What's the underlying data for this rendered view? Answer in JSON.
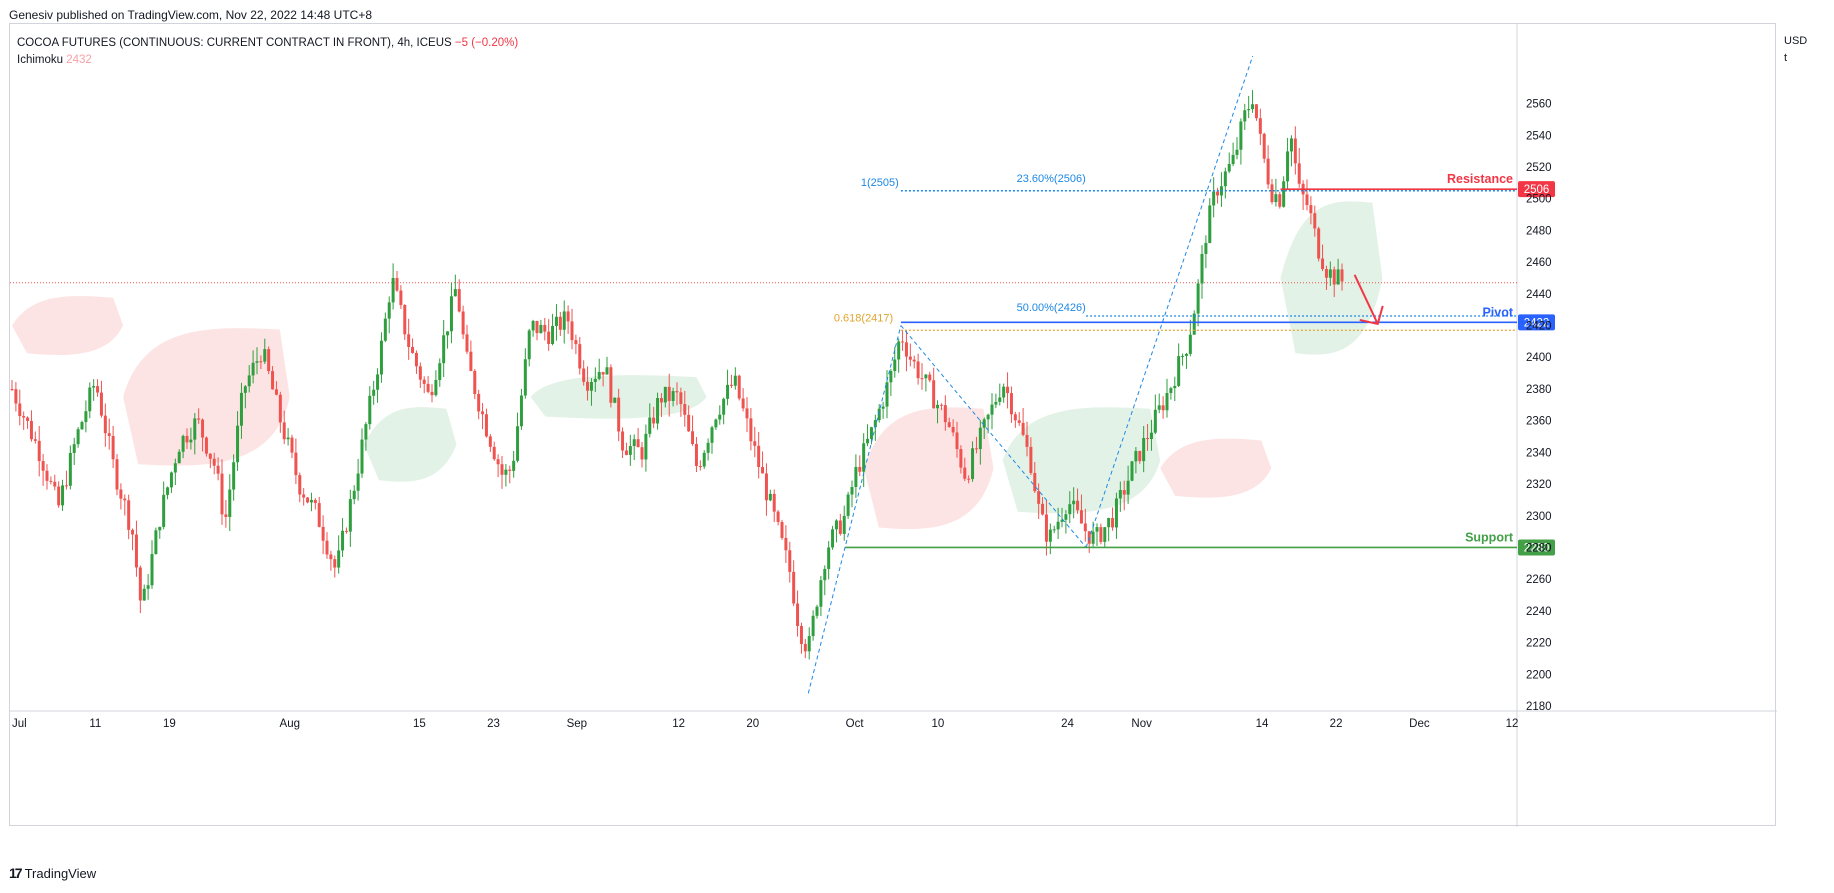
{
  "header": {
    "published": "Genesiv published on TradingView.com, Nov 22, 2022 14:48 UTC+8"
  },
  "legend": {
    "symbol": "COCOA FUTURES (CONTINUOUS: CURRENT CONTRACT IN FRONT), 4h, ICEUS",
    "change": "−5 (−0.20%)",
    "indicator": "Ichimoku",
    "indicator_value": "2432"
  },
  "currency": [
    "USD",
    "t"
  ],
  "footer": {
    "logo": "17",
    "brand": "TradingView"
  },
  "colors": {
    "up": "#2e9e3e",
    "down": "#ef5350",
    "resistance": "#f23645",
    "pivot": "#2962ff",
    "support": "#43a047",
    "fib": "#1e88e5",
    "fib618": "#e0a52e",
    "cloud_bull": "#e3f2e6",
    "cloud_bear": "#fde4e4"
  },
  "annotations": {
    "resistance": {
      "label": "Resistance",
      "value": 2506,
      "tag": "2506"
    },
    "pivot": {
      "label": "Pivot",
      "value": 2422,
      "tag": "2422"
    },
    "support": {
      "label": "Support",
      "value": 2280,
      "tag": "2280"
    },
    "fib_top": {
      "label": "1(2505)",
      "value": 2505
    },
    "fib_236": {
      "label": "23.60%(2506)",
      "value": 2506
    },
    "fib_50": {
      "label": "50.00%(2426)",
      "value": 2426
    },
    "fib_618": {
      "label": "0.618(2417)",
      "value": 2417
    },
    "last_price": 2447
  },
  "chart_data": {
    "type": "candlestick",
    "title": "COCOA FUTURES (CONTINUOUS: CURRENT CONTRACT IN FRONT), 4h, ICEUS",
    "ylim": [
      2180,
      2590
    ],
    "yticks": [
      2180,
      2200,
      2220,
      2240,
      2260,
      2280,
      2300,
      2320,
      2340,
      2360,
      2380,
      2400,
      2420,
      2440,
      2460,
      2480,
      2500,
      2520,
      2540,
      2560
    ],
    "xticks": [
      {
        "label": "Jul",
        "t": 0
      },
      {
        "label": "11",
        "t": 9
      },
      {
        "label": "19",
        "t": 17
      },
      {
        "label": "Aug",
        "t": 30
      },
      {
        "label": "15",
        "t": 44
      },
      {
        "label": "23",
        "t": 52
      },
      {
        "label": "Sep",
        "t": 61
      },
      {
        "label": "12",
        "t": 72
      },
      {
        "label": "20",
        "t": 80
      },
      {
        "label": "Oct",
        "t": 91
      },
      {
        "label": "10",
        "t": 100
      },
      {
        "label": "24",
        "t": 114
      },
      {
        "label": "Nov",
        "t": 122
      },
      {
        "label": "14",
        "t": 135
      },
      {
        "label": "22",
        "t": 143
      },
      {
        "label": "Dec",
        "t": 152
      },
      {
        "label": "12",
        "t": 162
      }
    ],
    "t_range": [
      0,
      162
    ],
    "price_path": [
      [
        0,
        2380
      ],
      [
        3,
        2340
      ],
      [
        5,
        2305
      ],
      [
        7,
        2350
      ],
      [
        9,
        2385
      ],
      [
        11,
        2330
      ],
      [
        13,
        2290
      ],
      [
        14,
        2240
      ],
      [
        16,
        2300
      ],
      [
        18,
        2345
      ],
      [
        20,
        2360
      ],
      [
        22,
        2330
      ],
      [
        23,
        2295
      ],
      [
        25,
        2380
      ],
      [
        27,
        2405
      ],
      [
        29,
        2360
      ],
      [
        31,
        2320
      ],
      [
        33,
        2300
      ],
      [
        35,
        2265
      ],
      [
        37,
        2320
      ],
      [
        39,
        2380
      ],
      [
        40,
        2410
      ],
      [
        41,
        2450
      ],
      [
        43,
        2405
      ],
      [
        45,
        2375
      ],
      [
        47,
        2420
      ],
      [
        48,
        2445
      ],
      [
        49,
        2400
      ],
      [
        51,
        2360
      ],
      [
        53,
        2325
      ],
      [
        54,
        2330
      ],
      [
        56,
        2420
      ],
      [
        58,
        2415
      ],
      [
        60,
        2425
      ],
      [
        62,
        2385
      ],
      [
        64,
        2395
      ],
      [
        66,
        2345
      ],
      [
        68,
        2340
      ],
      [
        70,
        2375
      ],
      [
        72,
        2375
      ],
      [
        74,
        2330
      ],
      [
        76,
        2365
      ],
      [
        78,
        2385
      ],
      [
        80,
        2345
      ],
      [
        82,
        2305
      ],
      [
        84,
        2265
      ],
      [
        85,
        2230
      ],
      [
        86,
        2215
      ],
      [
        87,
        2250
      ],
      [
        88,
        2280
      ],
      [
        90,
        2300
      ],
      [
        91,
        2325
      ],
      [
        93,
        2355
      ],
      [
        95,
        2390
      ],
      [
        96,
        2415
      ],
      [
        97,
        2400
      ],
      [
        99,
        2380
      ],
      [
        101,
        2360
      ],
      [
        103,
        2325
      ],
      [
        105,
        2355
      ],
      [
        107,
        2385
      ],
      [
        108,
        2370
      ],
      [
        110,
        2335
      ],
      [
        111,
        2300
      ],
      [
        112,
        2285
      ],
      [
        114,
        2310
      ],
      [
        116,
        2290
      ],
      [
        117,
        2285
      ],
      [
        119,
        2300
      ],
      [
        121,
        2330
      ],
      [
        123,
        2355
      ],
      [
        125,
        2380
      ],
      [
        127,
        2410
      ],
      [
        128,
        2440
      ],
      [
        129,
        2480
      ],
      [
        130,
        2505
      ],
      [
        132,
        2525
      ],
      [
        133,
        2550
      ],
      [
        134,
        2565
      ],
      [
        135,
        2530
      ],
      [
        136,
        2505
      ],
      [
        137,
        2500
      ],
      [
        138,
        2545
      ],
      [
        139,
        2505
      ],
      [
        140,
        2495
      ],
      [
        141,
        2470
      ],
      [
        142,
        2455
      ],
      [
        143,
        2450
      ],
      [
        144,
        2447
      ]
    ],
    "ichimoku_cloud": [
      {
        "from": 0,
        "to": 12,
        "upper": 2440,
        "lower": 2400,
        "bias": "bearish"
      },
      {
        "from": 12,
        "to": 30,
        "upper": 2420,
        "lower": 2330,
        "bias": "bearish"
      },
      {
        "from": 38,
        "to": 48,
        "upper": 2370,
        "lower": 2320,
        "bias": "bullish"
      },
      {
        "from": 56,
        "to": 75,
        "upper": 2390,
        "lower": 2360,
        "bias": "bullish"
      },
      {
        "from": 92,
        "to": 106,
        "upper": 2370,
        "lower": 2290,
        "bias": "bearish"
      },
      {
        "from": 107,
        "to": 124,
        "upper": 2370,
        "lower": 2300,
        "bias": "bullish"
      },
      {
        "from": 124,
        "to": 136,
        "upper": 2350,
        "lower": 2310,
        "bias": "bearish"
      },
      {
        "from": 137,
        "to": 148,
        "upper": 2500,
        "lower": 2400,
        "bias": "bullish"
      }
    ]
  }
}
